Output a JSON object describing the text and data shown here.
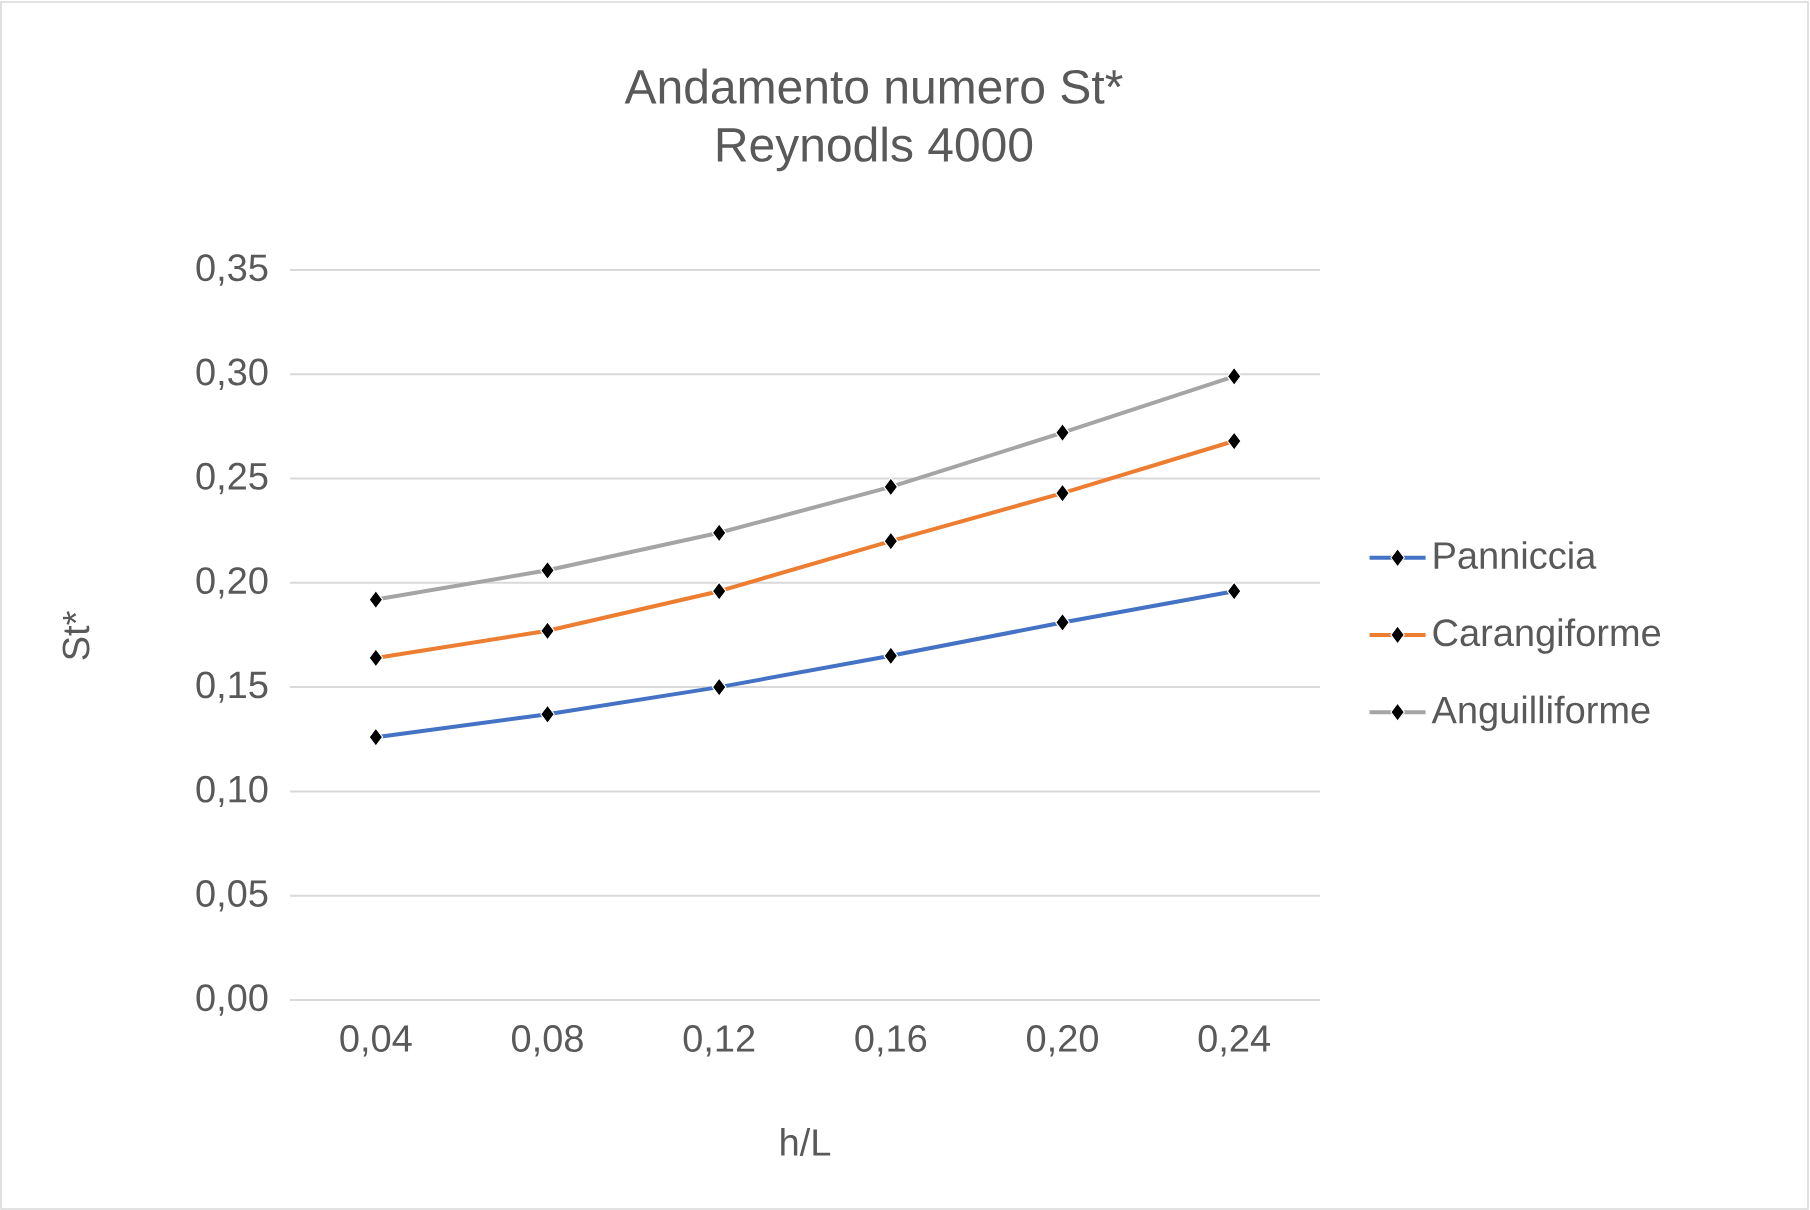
{
  "chart_data": {
    "type": "line",
    "title": "Andamento numero St*",
    "subtitle": "Reynodls 4000",
    "xlabel": "h/L",
    "ylabel": "St*",
    "categories": [
      "0,04",
      "0,08",
      "0,12",
      "0,16",
      "0,20",
      "0,24"
    ],
    "series": [
      {
        "name": "Panniccia",
        "color": "#4472c4",
        "values": [
          0.126,
          0.137,
          0.15,
          0.165,
          0.181,
          0.196
        ]
      },
      {
        "name": "Carangiforme",
        "color": "#ed7d31",
        "values": [
          0.164,
          0.177,
          0.196,
          0.22,
          0.243,
          0.268
        ]
      },
      {
        "name": "Anguilliforme",
        "color": "#a5a5a5",
        "values": [
          0.192,
          0.206,
          0.224,
          0.246,
          0.272,
          0.299
        ]
      }
    ],
    "ylim": [
      0,
      0.35
    ],
    "yticks": [
      {
        "value": 0,
        "label": "0,00"
      },
      {
        "value": 0.05,
        "label": "0,05"
      },
      {
        "value": 0.1,
        "label": "0,10"
      },
      {
        "value": 0.15,
        "label": "0,15"
      },
      {
        "value": 0.2,
        "label": "0,20"
      },
      {
        "value": 0.25,
        "label": "0,25"
      },
      {
        "value": 0.3,
        "label": "0,30"
      },
      {
        "value": 0.35,
        "label": "0,35"
      }
    ],
    "grid": "y",
    "legend": "right",
    "marker": "diamond",
    "line_style": "solid"
  }
}
